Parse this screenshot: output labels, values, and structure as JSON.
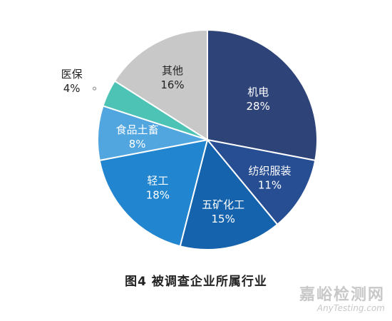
{
  "chart_data": {
    "type": "pie",
    "title": "图4   被调查企业所属行业",
    "slices": [
      {
        "label": "机电",
        "value": 28,
        "value_text": "28%",
        "color": "#2e4378"
      },
      {
        "label": "纺织服装",
        "value": 11,
        "value_text": "11%",
        "color": "#274e93"
      },
      {
        "label": "五矿化工",
        "value": 15,
        "value_text": "15%",
        "color": "#1663ad"
      },
      {
        "label": "轻工",
        "value": 18,
        "value_text": "18%",
        "color": "#2285cf"
      },
      {
        "label": "食品土畜",
        "value": 8,
        "value_text": "8%",
        "color": "#52a6e0"
      },
      {
        "label": "医保",
        "value": 4,
        "value_text": "4%",
        "color": "#4cc3b5"
      },
      {
        "label": "其他",
        "value": 16,
        "value_text": "16%",
        "color": "#c8c8c8"
      }
    ]
  },
  "watermark": {
    "cn": "嘉峪检测网",
    "en": "AnyTesting.com"
  }
}
